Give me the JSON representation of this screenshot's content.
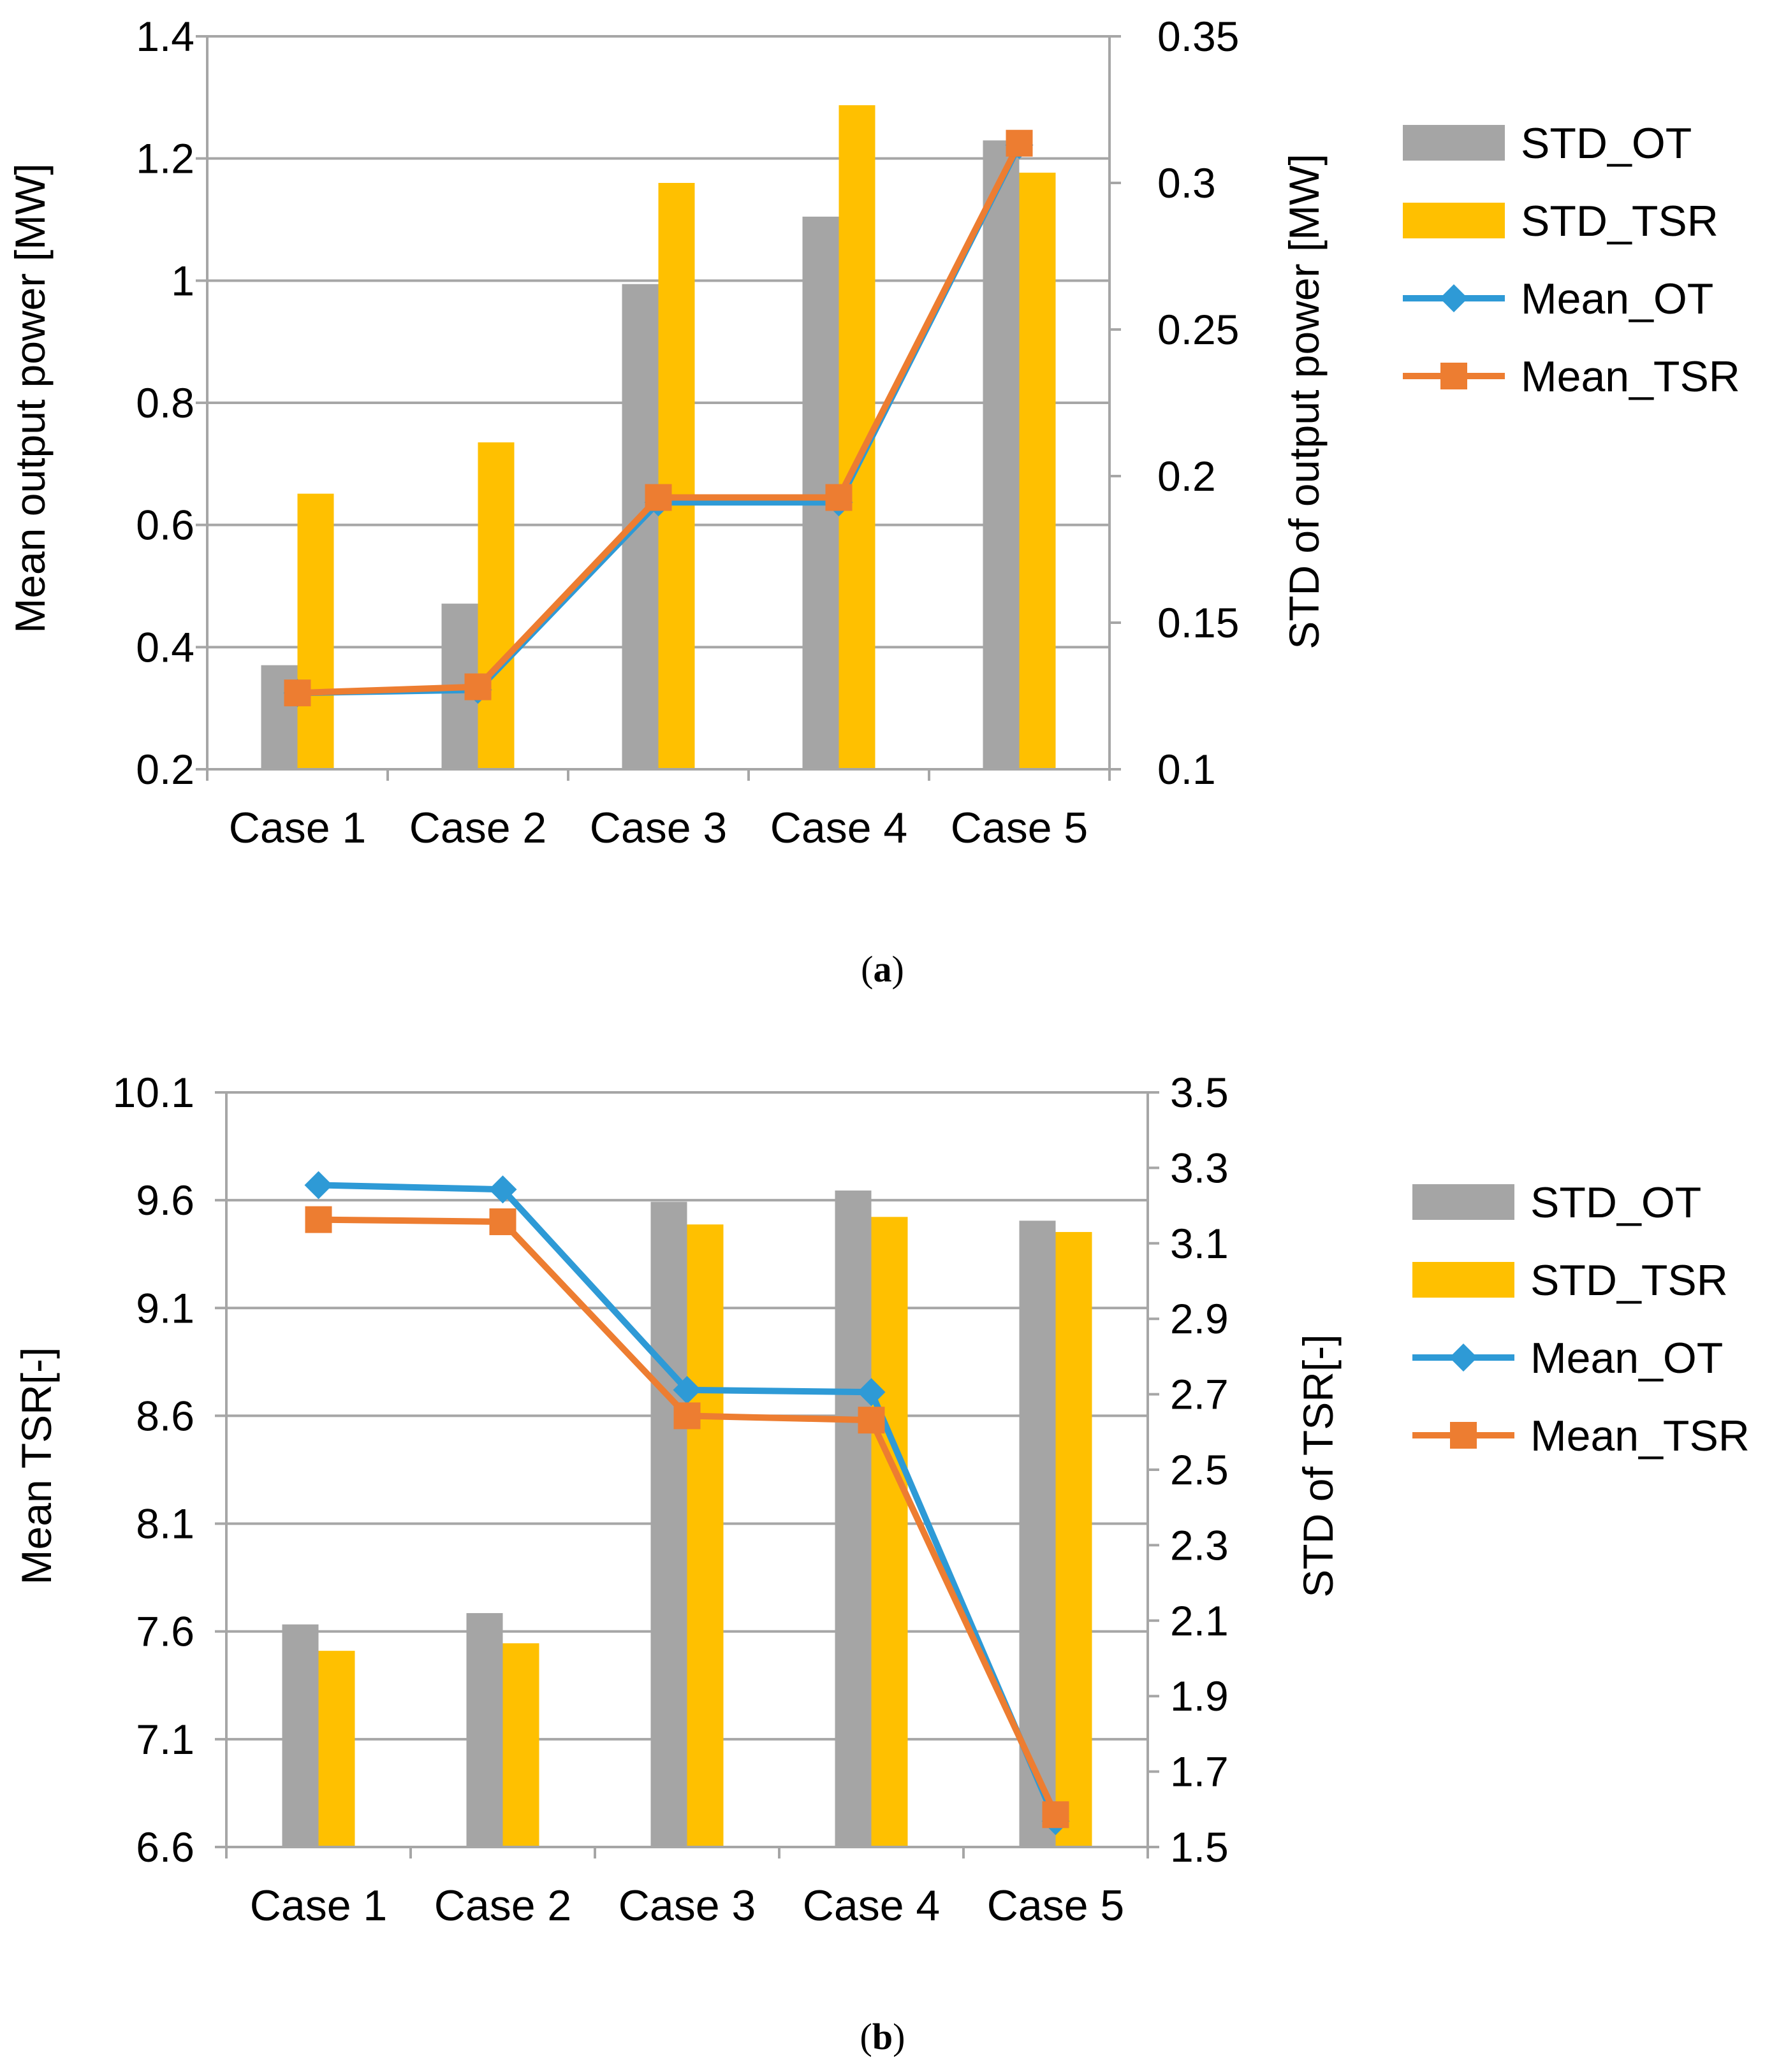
{
  "chart_data": [
    {
      "type": "bar",
      "categories": [
        "Case 1",
        "Case 2",
        "Case 3",
        "Case 4",
        "Case 5"
      ],
      "bar_series": [
        {
          "name": "STD_OT",
          "color": "#a5a5a5",
          "values": [
            0.1355,
            0.1565,
            0.2655,
            0.2885,
            0.3145
          ]
        },
        {
          "name": "STD_TSR",
          "color": "#ffc000",
          "values": [
            0.194,
            0.2115,
            0.3,
            0.3265,
            0.3035
          ]
        }
      ],
      "line_series": [
        {
          "name": "Mean_OT",
          "color": "#2e9ad6",
          "marker": "diamond",
          "values": [
            0.325,
            0.33,
            0.637,
            0.637,
            1.222
          ]
        },
        {
          "name": "Mean_TSR",
          "color": "#ed7d31",
          "marker": "square",
          "values": [
            0.325,
            0.335,
            0.645,
            0.645,
            1.225
          ]
        }
      ],
      "ylabel_left": "Mean output power [MW]",
      "ylabel_right": "STD of output power [MW]",
      "ylim_left": [
        0.2,
        1.4
      ],
      "yticks_left": [
        "1.4",
        "1.2",
        "1",
        "0.8",
        "0.6",
        "0.4",
        "0.2"
      ],
      "ylim_right": [
        0.1,
        0.35
      ],
      "yticks_right": [
        "0.35",
        "0.3",
        "0.25",
        "0.2",
        "0.15",
        "0.1"
      ],
      "grid": true,
      "legend_position": "right",
      "caption_label": "a"
    },
    {
      "type": "bar",
      "categories": [
        "Case 1",
        "Case 2",
        "Case 3",
        "Case 4",
        "Case 5"
      ],
      "bar_series": [
        {
          "name": "STD_OT",
          "color": "#a5a5a5",
          "values": [
            2.09,
            2.12,
            3.21,
            3.24,
            3.16
          ]
        },
        {
          "name": "STD_TSR",
          "color": "#ffc000",
          "values": [
            2.02,
            2.04,
            3.15,
            3.17,
            3.13
          ]
        }
      ],
      "line_series": [
        {
          "name": "Mean_OT",
          "color": "#2e9ad6",
          "marker": "diamond",
          "values": [
            9.67,
            9.65,
            8.72,
            8.71,
            6.72
          ]
        },
        {
          "name": "Mean_TSR",
          "color": "#ed7d31",
          "marker": "square",
          "values": [
            9.51,
            9.5,
            8.6,
            8.58,
            6.75
          ]
        }
      ],
      "ylabel_left": "Mean TSR[-]",
      "ylabel_right": "STD of TSR[-]",
      "ylim_left": [
        6.6,
        10.1
      ],
      "yticks_left": [
        "10.1",
        "9.6",
        "9.1",
        "8.6",
        "8.1",
        "7.6",
        "7.1",
        "6.6"
      ],
      "ylim_right": [
        1.5,
        3.5
      ],
      "yticks_right": [
        "3.5",
        "3.3",
        "3.1",
        "2.9",
        "2.7",
        "2.5",
        "2.3",
        "2.1",
        "1.9",
        "1.7",
        "1.5"
      ],
      "grid": true,
      "legend_position": "right",
      "caption_label": "b"
    }
  ]
}
